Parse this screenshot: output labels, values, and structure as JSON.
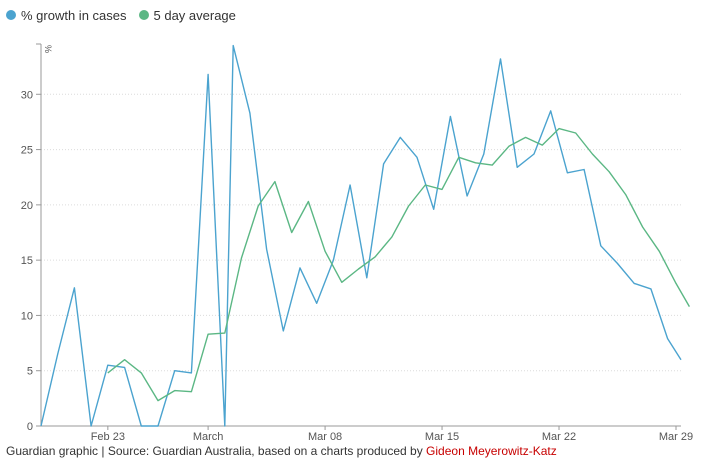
{
  "chart_data": {
    "type": "line",
    "y_unit": "%",
    "ylim": [
      0,
      35
    ],
    "y_ticks": [
      0,
      5,
      10,
      15,
      20,
      25,
      30
    ],
    "x_ticks": [
      {
        "label": "Feb 23",
        "day": 4
      },
      {
        "label": "March",
        "day": 10
      },
      {
        "label": "Mar 08",
        "day": 17
      },
      {
        "label": "Mar 15",
        "day": 24
      },
      {
        "label": "Mar 22",
        "day": 31
      },
      {
        "label": "Mar 29",
        "day": 38
      }
    ],
    "x_domain": [
      0,
      38.3
    ],
    "x_tick_unit": "days from Feb 19",
    "grid": "horizontal",
    "legend_position": "top-left",
    "series": [
      {
        "name": "% growth in cases",
        "color": "#4ba3cf",
        "points": [
          [
            0,
            0
          ],
          [
            1,
            6.5
          ],
          [
            2,
            12.5
          ],
          [
            3,
            0
          ],
          [
            4,
            5.5
          ],
          [
            5,
            5.3
          ],
          [
            6,
            0
          ],
          [
            7,
            0
          ],
          [
            8,
            5
          ],
          [
            9,
            4.8
          ],
          [
            10,
            31.8
          ],
          [
            11,
            0
          ],
          [
            11.5,
            34.4
          ],
          [
            12.5,
            28.3
          ],
          [
            13.5,
            16
          ],
          [
            14.5,
            8.6
          ],
          [
            15.5,
            14.3
          ],
          [
            16.5,
            11.1
          ],
          [
            17.5,
            15
          ],
          [
            18.5,
            21.8
          ],
          [
            19.5,
            13.4
          ],
          [
            20.5,
            23.7
          ],
          [
            21.5,
            26.1
          ],
          [
            22.5,
            24.3
          ],
          [
            23.5,
            19.6
          ],
          [
            24.5,
            28
          ],
          [
            25.5,
            20.8
          ],
          [
            26.5,
            24.6
          ],
          [
            27.5,
            33.2
          ],
          [
            28.5,
            23.4
          ],
          [
            29.5,
            24.6
          ],
          [
            30.5,
            28.5
          ],
          [
            31.5,
            22.9
          ],
          [
            32.5,
            23.2
          ],
          [
            33.5,
            16.3
          ],
          [
            34.5,
            14.7
          ],
          [
            35.5,
            12.9
          ],
          [
            36.5,
            12.4
          ],
          [
            37.5,
            7.9
          ],
          [
            38.3,
            6
          ]
        ]
      },
      {
        "name": "5 day average",
        "color": "#5bb784",
        "points": [
          [
            4,
            4.8
          ],
          [
            5,
            6
          ],
          [
            6,
            4.8
          ],
          [
            7,
            2.3
          ],
          [
            8,
            3.2
          ],
          [
            9,
            3.1
          ],
          [
            10,
            8.3
          ],
          [
            11,
            8.4
          ],
          [
            12,
            15.2
          ],
          [
            13,
            19.9
          ],
          [
            14,
            22.1
          ],
          [
            15,
            17.5
          ],
          [
            16,
            20.3
          ],
          [
            17,
            15.8
          ],
          [
            18,
            13
          ],
          [
            19,
            14.2
          ],
          [
            20,
            15.3
          ],
          [
            21,
            17.1
          ],
          [
            22,
            19.9
          ],
          [
            23,
            21.8
          ],
          [
            24,
            21.4
          ],
          [
            25,
            24.3
          ],
          [
            26,
            23.8
          ],
          [
            27,
            23.6
          ],
          [
            28,
            25.3
          ],
          [
            29,
            26.1
          ],
          [
            30,
            25.4
          ],
          [
            31,
            26.9
          ],
          [
            32,
            26.5
          ],
          [
            33,
            24.6
          ],
          [
            34,
            23
          ],
          [
            35,
            20.9
          ],
          [
            36,
            18
          ],
          [
            37,
            15.8
          ],
          [
            38,
            12.9
          ],
          [
            38.8,
            10.8
          ]
        ]
      }
    ]
  },
  "footer": {
    "text": "Guardian graphic | Source: Guardian Australia, based on a charts produced by ",
    "credit_name": "Gideon Meyerowitz-Katz"
  }
}
